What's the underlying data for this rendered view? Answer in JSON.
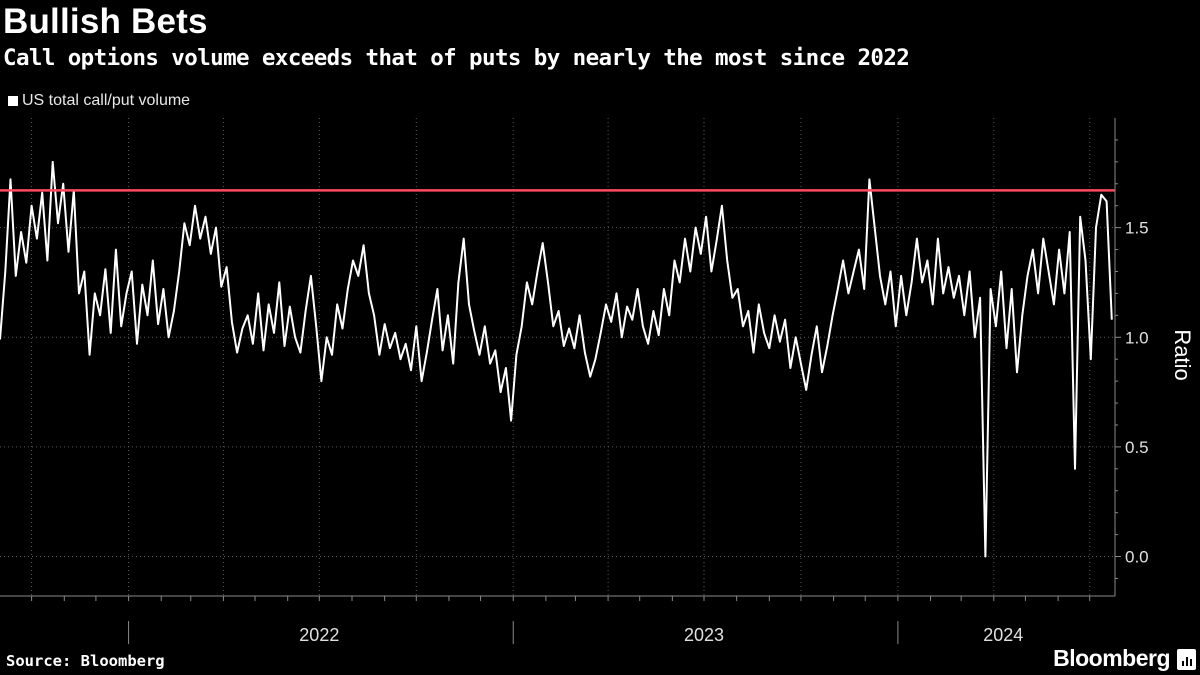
{
  "title": "Bullish Bets",
  "subtitle": "Call options volume exceeds that of puts by nearly the most since 2022",
  "legend": [
    {
      "label": "US total call/put volume",
      "color": "#ffffff"
    }
  ],
  "source": "Source: Bloomberg",
  "brand": "Bloomberg",
  "brand_icon": "bloomberg-terminal-icon",
  "colors": {
    "background": "#000000",
    "series": "#ffffff",
    "reference_line": "#ff4a5e",
    "grid": "#5a5a5a"
  },
  "chart_data": {
    "type": "line",
    "title": "Bullish Bets",
    "subtitle": "Call options volume exceeds that of puts by nearly the most since 2022",
    "ylabel": "Ratio",
    "ylim": [
      -0.18,
      2.0
    ],
    "yticks": [
      0.0,
      0.5,
      1.0,
      1.5
    ],
    "ytick_labels": [
      "0.0",
      "0.5",
      "1.0",
      "1.5"
    ],
    "xlim": [
      "2021-09-01",
      "2024-07-25"
    ],
    "xtick_labels": [
      {
        "label": "2022",
        "at": "2022-07-01"
      },
      {
        "label": "2023",
        "at": "2023-07-01"
      },
      {
        "label": "2024",
        "at": "2024-04-10"
      }
    ],
    "year_boundaries": [
      "2022-01-01",
      "2023-01-01",
      "2024-01-01"
    ],
    "grid": "vertical-dotted-and-horizontal-dotted",
    "legend_position": "top-left",
    "reference_line": {
      "y": 1.67,
      "color": "#ff4a5e"
    },
    "series": [
      {
        "name": "US total call/put volume",
        "color": "#ffffff",
        "points": [
          [
            "2021-09-01",
            0.99
          ],
          [
            "2021-09-06",
            1.3
          ],
          [
            "2021-09-11",
            1.72
          ],
          [
            "2021-09-16",
            1.28
          ],
          [
            "2021-09-21",
            1.48
          ],
          [
            "2021-09-26",
            1.34
          ],
          [
            "2021-10-01",
            1.6
          ],
          [
            "2021-10-06",
            1.45
          ],
          [
            "2021-10-11",
            1.66
          ],
          [
            "2021-10-16",
            1.35
          ],
          [
            "2021-10-21",
            1.8
          ],
          [
            "2021-10-26",
            1.52
          ],
          [
            "2021-10-31",
            1.7
          ],
          [
            "2021-11-05",
            1.39
          ],
          [
            "2021-11-10",
            1.67
          ],
          [
            "2021-11-15",
            1.2
          ],
          [
            "2021-11-20",
            1.3
          ],
          [
            "2021-11-25",
            0.92
          ],
          [
            "2021-11-30",
            1.2
          ],
          [
            "2021-12-05",
            1.1
          ],
          [
            "2021-12-10",
            1.31
          ],
          [
            "2021-12-15",
            1.02
          ],
          [
            "2021-12-20",
            1.4
          ],
          [
            "2021-12-25",
            1.05
          ],
          [
            "2021-12-30",
            1.2
          ],
          [
            "2022-01-04",
            1.3
          ],
          [
            "2022-01-09",
            0.97
          ],
          [
            "2022-01-14",
            1.24
          ],
          [
            "2022-01-19",
            1.1
          ],
          [
            "2022-01-24",
            1.35
          ],
          [
            "2022-01-29",
            1.06
          ],
          [
            "2022-02-03",
            1.22
          ],
          [
            "2022-02-08",
            1.0
          ],
          [
            "2022-02-13",
            1.12
          ],
          [
            "2022-02-18",
            1.3
          ],
          [
            "2022-02-23",
            1.52
          ],
          [
            "2022-02-28",
            1.42
          ],
          [
            "2022-03-05",
            1.6
          ],
          [
            "2022-03-10",
            1.45
          ],
          [
            "2022-03-15",
            1.55
          ],
          [
            "2022-03-20",
            1.38
          ],
          [
            "2022-03-25",
            1.5
          ],
          [
            "2022-03-30",
            1.23
          ],
          [
            "2022-04-04",
            1.32
          ],
          [
            "2022-04-09",
            1.07
          ],
          [
            "2022-04-14",
            0.93
          ],
          [
            "2022-04-19",
            1.04
          ],
          [
            "2022-04-24",
            1.1
          ],
          [
            "2022-04-29",
            0.97
          ],
          [
            "2022-05-04",
            1.2
          ],
          [
            "2022-05-09",
            0.94
          ],
          [
            "2022-05-14",
            1.15
          ],
          [
            "2022-05-19",
            1.02
          ],
          [
            "2022-05-24",
            1.25
          ],
          [
            "2022-05-29",
            0.96
          ],
          [
            "2022-06-03",
            1.14
          ],
          [
            "2022-06-08",
            1.0
          ],
          [
            "2022-06-13",
            0.93
          ],
          [
            "2022-06-18",
            1.12
          ],
          [
            "2022-06-23",
            1.28
          ],
          [
            "2022-06-28",
            1.05
          ],
          [
            "2022-07-03",
            0.8
          ],
          [
            "2022-07-08",
            1.0
          ],
          [
            "2022-07-13",
            0.92
          ],
          [
            "2022-07-18",
            1.15
          ],
          [
            "2022-07-23",
            1.04
          ],
          [
            "2022-07-28",
            1.22
          ],
          [
            "2022-08-02",
            1.35
          ],
          [
            "2022-08-07",
            1.28
          ],
          [
            "2022-08-12",
            1.42
          ],
          [
            "2022-08-17",
            1.2
          ],
          [
            "2022-08-22",
            1.1
          ],
          [
            "2022-08-27",
            0.92
          ],
          [
            "2022-09-01",
            1.06
          ],
          [
            "2022-09-06",
            0.95
          ],
          [
            "2022-09-11",
            1.02
          ],
          [
            "2022-09-16",
            0.9
          ],
          [
            "2022-09-21",
            0.97
          ],
          [
            "2022-09-26",
            0.85
          ],
          [
            "2022-10-01",
            1.05
          ],
          [
            "2022-10-06",
            0.8
          ],
          [
            "2022-10-11",
            0.93
          ],
          [
            "2022-10-16",
            1.08
          ],
          [
            "2022-10-21",
            1.22
          ],
          [
            "2022-10-26",
            0.94
          ],
          [
            "2022-10-31",
            1.1
          ],
          [
            "2022-11-05",
            0.88
          ],
          [
            "2022-11-10",
            1.25
          ],
          [
            "2022-11-15",
            1.45
          ],
          [
            "2022-11-20",
            1.15
          ],
          [
            "2022-11-25",
            1.03
          ],
          [
            "2022-11-30",
            0.92
          ],
          [
            "2022-12-05",
            1.05
          ],
          [
            "2022-12-10",
            0.88
          ],
          [
            "2022-12-15",
            0.94
          ],
          [
            "2022-12-20",
            0.75
          ],
          [
            "2022-12-25",
            0.86
          ],
          [
            "2022-12-30",
            0.62
          ],
          [
            "2023-01-04",
            0.92
          ],
          [
            "2023-01-09",
            1.05
          ],
          [
            "2023-01-14",
            1.25
          ],
          [
            "2023-01-19",
            1.15
          ],
          [
            "2023-01-24",
            1.3
          ],
          [
            "2023-01-29",
            1.43
          ],
          [
            "2023-02-03",
            1.25
          ],
          [
            "2023-02-08",
            1.05
          ],
          [
            "2023-02-13",
            1.12
          ],
          [
            "2023-02-18",
            0.96
          ],
          [
            "2023-02-23",
            1.04
          ],
          [
            "2023-02-28",
            0.95
          ],
          [
            "2023-03-05",
            1.1
          ],
          [
            "2023-03-10",
            0.93
          ],
          [
            "2023-03-15",
            0.82
          ],
          [
            "2023-03-20",
            0.9
          ],
          [
            "2023-03-25",
            1.02
          ],
          [
            "2023-03-30",
            1.15
          ],
          [
            "2023-04-04",
            1.07
          ],
          [
            "2023-04-09",
            1.2
          ],
          [
            "2023-04-14",
            1.0
          ],
          [
            "2023-04-19",
            1.14
          ],
          [
            "2023-04-24",
            1.08
          ],
          [
            "2023-04-29",
            1.22
          ],
          [
            "2023-05-04",
            1.05
          ],
          [
            "2023-05-09",
            0.97
          ],
          [
            "2023-05-14",
            1.12
          ],
          [
            "2023-05-19",
            1.01
          ],
          [
            "2023-05-24",
            1.22
          ],
          [
            "2023-05-29",
            1.1
          ],
          [
            "2023-06-03",
            1.35
          ],
          [
            "2023-06-08",
            1.25
          ],
          [
            "2023-06-13",
            1.45
          ],
          [
            "2023-06-18",
            1.3
          ],
          [
            "2023-06-23",
            1.5
          ],
          [
            "2023-06-28",
            1.38
          ],
          [
            "2023-07-03",
            1.55
          ],
          [
            "2023-07-08",
            1.3
          ],
          [
            "2023-07-13",
            1.44
          ],
          [
            "2023-07-18",
            1.6
          ],
          [
            "2023-07-23",
            1.35
          ],
          [
            "2023-07-28",
            1.18
          ],
          [
            "2023-08-02",
            1.22
          ],
          [
            "2023-08-07",
            1.05
          ],
          [
            "2023-08-12",
            1.12
          ],
          [
            "2023-08-17",
            0.93
          ],
          [
            "2023-08-22",
            1.15
          ],
          [
            "2023-08-27",
            1.02
          ],
          [
            "2023-09-01",
            0.95
          ],
          [
            "2023-09-06",
            1.1
          ],
          [
            "2023-09-11",
            0.98
          ],
          [
            "2023-09-16",
            1.08
          ],
          [
            "2023-09-21",
            0.86
          ],
          [
            "2023-09-26",
            1.0
          ],
          [
            "2023-10-01",
            0.88
          ],
          [
            "2023-10-06",
            0.76
          ],
          [
            "2023-10-11",
            0.92
          ],
          [
            "2023-10-16",
            1.05
          ],
          [
            "2023-10-21",
            0.84
          ],
          [
            "2023-10-26",
            0.96
          ],
          [
            "2023-10-31",
            1.1
          ],
          [
            "2023-11-05",
            1.22
          ],
          [
            "2023-11-10",
            1.35
          ],
          [
            "2023-11-15",
            1.2
          ],
          [
            "2023-11-20",
            1.3
          ],
          [
            "2023-11-25",
            1.4
          ],
          [
            "2023-11-30",
            1.22
          ],
          [
            "2023-12-05",
            1.72
          ],
          [
            "2023-12-10",
            1.5
          ],
          [
            "2023-12-15",
            1.28
          ],
          [
            "2023-12-20",
            1.15
          ],
          [
            "2023-12-25",
            1.3
          ],
          [
            "2023-12-30",
            1.05
          ],
          [
            "2024-01-04",
            1.28
          ],
          [
            "2024-01-09",
            1.1
          ],
          [
            "2024-01-14",
            1.25
          ],
          [
            "2024-01-19",
            1.45
          ],
          [
            "2024-01-24",
            1.25
          ],
          [
            "2024-01-29",
            1.35
          ],
          [
            "2024-02-03",
            1.15
          ],
          [
            "2024-02-08",
            1.45
          ],
          [
            "2024-02-13",
            1.2
          ],
          [
            "2024-02-18",
            1.32
          ],
          [
            "2024-02-23",
            1.18
          ],
          [
            "2024-02-28",
            1.28
          ],
          [
            "2024-03-04",
            1.1
          ],
          [
            "2024-03-09",
            1.3
          ],
          [
            "2024-03-14",
            1.0
          ],
          [
            "2024-03-19",
            1.18
          ],
          [
            "2024-03-24",
            0.0
          ],
          [
            "2024-03-29",
            1.22
          ],
          [
            "2024-04-03",
            1.05
          ],
          [
            "2024-04-08",
            1.3
          ],
          [
            "2024-04-13",
            0.95
          ],
          [
            "2024-04-18",
            1.22
          ],
          [
            "2024-04-23",
            0.84
          ],
          [
            "2024-04-28",
            1.1
          ],
          [
            "2024-05-03",
            1.28
          ],
          [
            "2024-05-08",
            1.4
          ],
          [
            "2024-05-13",
            1.2
          ],
          [
            "2024-05-18",
            1.45
          ],
          [
            "2024-05-23",
            1.3
          ],
          [
            "2024-05-28",
            1.15
          ],
          [
            "2024-06-02",
            1.4
          ],
          [
            "2024-06-07",
            1.2
          ],
          [
            "2024-06-12",
            1.48
          ],
          [
            "2024-06-17",
            0.4
          ],
          [
            "2024-06-22",
            1.55
          ],
          [
            "2024-06-27",
            1.35
          ],
          [
            "2024-07-02",
            0.9
          ],
          [
            "2024-07-07",
            1.5
          ],
          [
            "2024-07-12",
            1.65
          ],
          [
            "2024-07-17",
            1.62
          ],
          [
            "2024-07-22",
            1.08
          ]
        ]
      }
    ]
  }
}
